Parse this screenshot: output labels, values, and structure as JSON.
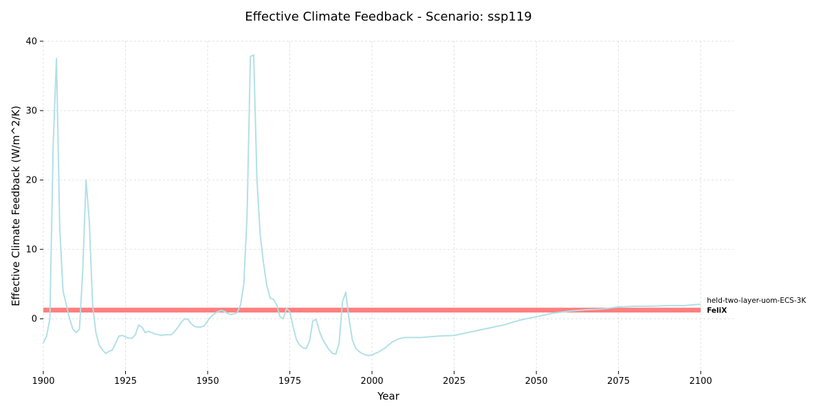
{
  "chart_data": {
    "type": "line",
    "title": "Effective Climate Feedback - Scenario: ssp119",
    "xlabel": "Year",
    "ylabel": "Effective Climate Feedback (W/m^2/K)",
    "xlim": [
      1900,
      2110
    ],
    "ylim": [
      -7.5,
      40
    ],
    "xticks": [
      1900,
      1925,
      1950,
      1975,
      2000,
      2025,
      2050,
      2075,
      2100
    ],
    "yticks": [
      0,
      10,
      20,
      30,
      40
    ],
    "grid": true,
    "series": [
      {
        "name": "held-two-layer-uom-ECS-3K",
        "color": "#b0e0e6",
        "label_bold": false,
        "x": [
          1900,
          1901,
          1902,
          1903,
          1904,
          1905,
          1906,
          1907,
          1908,
          1909,
          1910,
          1911,
          1912,
          1913,
          1914,
          1915,
          1916,
          1917,
          1918,
          1919,
          1920,
          1921,
          1922,
          1923,
          1924,
          1925,
          1926,
          1927,
          1928,
          1929,
          1930,
          1931,
          1932,
          1933,
          1934,
          1935,
          1936,
          1937,
          1938,
          1939,
          1940,
          1941,
          1942,
          1943,
          1944,
          1945,
          1946,
          1947,
          1948,
          1949,
          1950,
          1951,
          1952,
          1953,
          1954,
          1955,
          1956,
          1957,
          1958,
          1959,
          1960,
          1961,
          1962,
          1963,
          1964,
          1965,
          1966,
          1967,
          1968,
          1969,
          1970,
          1971,
          1972,
          1973,
          1974,
          1975,
          1976,
          1977,
          1978,
          1979,
          1980,
          1981,
          1982,
          1983,
          1984,
          1985,
          1986,
          1987,
          1988,
          1989,
          1990,
          1991,
          1992,
          1993,
          1994,
          1995,
          1996,
          1997,
          1998,
          1999,
          2000,
          2002,
          2004,
          2006,
          2008,
          2010,
          2015,
          2020,
          2025,
          2030,
          2035,
          2040,
          2045,
          2050,
          2055,
          2060,
          2065,
          2070,
          2075,
          2080,
          2085,
          2090,
          2095,
          2100
        ],
        "y": [
          -3.5,
          -2.5,
          0,
          25,
          37.5,
          13,
          4,
          2,
          0,
          -1.5,
          -2,
          -1.5,
          7,
          20,
          14,
          2,
          -2,
          -3.8,
          -4.5,
          -5,
          -4.7,
          -4.5,
          -3.5,
          -2.5,
          -2.4,
          -2.6,
          -2.8,
          -2.8,
          -2.3,
          -0.9,
          -1.2,
          -2,
          -1.8,
          -2,
          -2.2,
          -2.3,
          -2.4,
          -2.3,
          -2.3,
          -2.3,
          -1.8,
          -1.2,
          -0.5,
          0,
          -0.1,
          -0.7,
          -1.1,
          -1.2,
          -1.2,
          -1,
          -0.3,
          0.3,
          0.7,
          1,
          1.2,
          1.1,
          0.8,
          0.6,
          0.7,
          0.9,
          2,
          5,
          15,
          37.8,
          38,
          20,
          12,
          8,
          4.8,
          3,
          2.8,
          2,
          0.3,
          0,
          1.5,
          1,
          -1.2,
          -3,
          -3.8,
          -4.2,
          -4.3,
          -3.2,
          -0.3,
          -0.1,
          -1.8,
          -3,
          -3.8,
          -4.5,
          -5,
          -5.1,
          -3.5,
          2.4,
          3.8,
          0,
          -3,
          -4.2,
          -4.7,
          -5,
          -5.2,
          -5.3,
          -5.2,
          -4.8,
          -4.2,
          -3.4,
          -2.9,
          -2.7,
          -2.7,
          -2.5,
          -2.4,
          -1.9,
          -1.4,
          -0.9,
          -0.2,
          0.3,
          0.8,
          1.1,
          1.3,
          1.4,
          1.7,
          1.8,
          1.8,
          1.9,
          1.9,
          2.1
        ]
      },
      {
        "name": "FeliX",
        "color": "#ff7f7f",
        "label_bold": true,
        "x": [
          1900,
          2100
        ],
        "y": [
          1.25,
          1.25
        ]
      }
    ]
  }
}
